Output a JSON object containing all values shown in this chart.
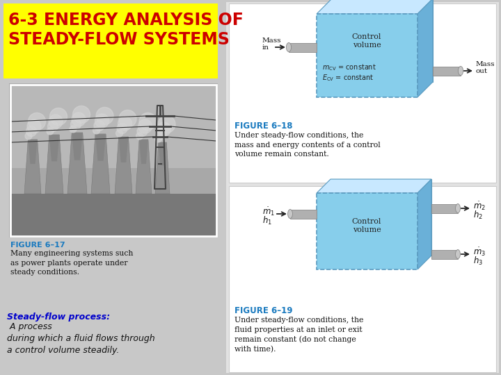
{
  "bg_color": "#c8c8c8",
  "title_bg": "#ffff00",
  "title_color": "#cc0000",
  "fig18_label": "FIGURE 6–18",
  "fig18_caption": "Under steady-flow conditions, the\nmass and energy contents of a control\nvolume remain constant.",
  "fig19_label": "FIGURE 6–19",
  "fig19_caption": "Under steady-flow conditions, the\nfluid properties at an inlet or exit\nremain constant (do not change\nwith time).",
  "fig17_label": "FIGURE 6–17",
  "fig17_caption": "Many engineering systems such\nas power plants operate under\nsteady conditions.",
  "figure_label_color": "#1a7abf",
  "cv_box_front": "#87ceeb",
  "cv_box_back": "#a8d8f0",
  "cv_box_top": "#c8e8ff",
  "cv_box_right": "#6ab0d8",
  "cv_box_edge": "#5a9abf",
  "pipe_color": "#b0b0b0",
  "pipe_edge": "#888888",
  "right_panel_bg": "#e2e2e2",
  "white_box": "#ffffff",
  "white_box_edge": "#cccccc"
}
